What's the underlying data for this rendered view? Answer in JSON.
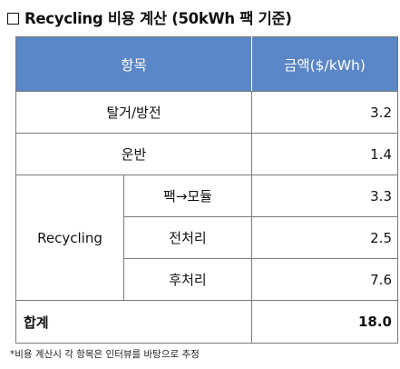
{
  "title": "Recycling 비용 계산 (50kWh 팩 기준)",
  "header": {
    "item": "항목",
    "amount": "금액($/kWh)"
  },
  "rows": {
    "dismantle": {
      "label": "탈거/방전",
      "value": "3.2"
    },
    "transport": {
      "label": "운반",
      "value": "1.4"
    },
    "recycling": {
      "label": "Recycling",
      "sub": [
        {
          "label": "팩→모듈",
          "value": "3.3"
        },
        {
          "label": "전처리",
          "value": "2.5"
        },
        {
          "label": "후처리",
          "value": "7.6"
        }
      ]
    }
  },
  "total": {
    "label": "합계",
    "value": "18.0"
  },
  "footnote": "*비용 계산시 각 항목은 인터뷰를 바탕으로 추정",
  "colors": {
    "header_bg": "#5b86c7",
    "header_text": "#ffffff"
  }
}
